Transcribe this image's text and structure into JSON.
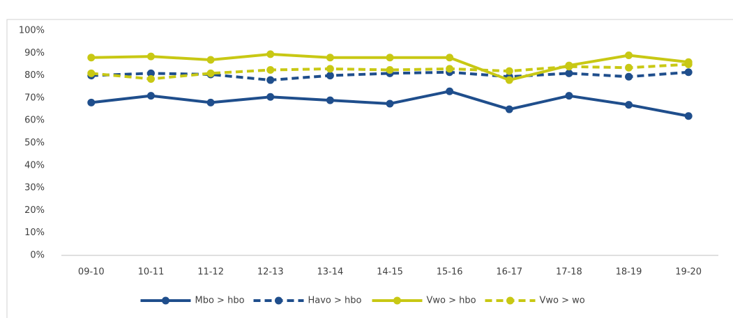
{
  "chart_data": {
    "type": "line",
    "categories": [
      "09-10",
      "10-11",
      "11-12",
      "12-13",
      "13-14",
      "14-15",
      "15-16",
      "16-17",
      "17-18",
      "18-19",
      "19-20"
    ],
    "series": [
      {
        "name": "Mbo > hbo",
        "color": "#1f4e8c",
        "dashed": false,
        "values": [
          68,
          71,
          68,
          70.5,
          69,
          67.5,
          73,
          65,
          71,
          67,
          62
        ]
      },
      {
        "name": "Havo > hbo",
        "color": "#1f4e8c",
        "dashed": true,
        "values": [
          80,
          81,
          80.5,
          78,
          80,
          81,
          81.5,
          79.5,
          81,
          79.5,
          81.5
        ]
      },
      {
        "name": "Vwo > hbo",
        "color": "#c8c814",
        "dashed": false,
        "values": [
          88,
          88.5,
          87,
          89.5,
          88,
          88,
          88,
          78,
          84.5,
          89,
          86
        ]
      },
      {
        "name": "Vwo > wo",
        "color": "#c8c814",
        "dashed": true,
        "values": [
          81,
          78.5,
          81,
          82.5,
          83,
          82.5,
          83,
          82,
          84,
          83.5,
          85
        ]
      }
    ],
    "ylim": [
      0,
      100
    ],
    "yticks": [
      {
        "value": 0,
        "label": "0%"
      },
      {
        "value": 10,
        "label": "10%"
      },
      {
        "value": 20,
        "label": "20%"
      },
      {
        "value": 30,
        "label": "30%"
      },
      {
        "value": 40,
        "label": "40%"
      },
      {
        "value": 50,
        "label": "50%"
      },
      {
        "value": 60,
        "label": "60%"
      },
      {
        "value": 70,
        "label": "70%"
      },
      {
        "value": 80,
        "label": "80%"
      },
      {
        "value": 90,
        "label": "90%"
      },
      {
        "value": 100,
        "label": "100%"
      }
    ],
    "grid": false,
    "legend": "bottom"
  }
}
